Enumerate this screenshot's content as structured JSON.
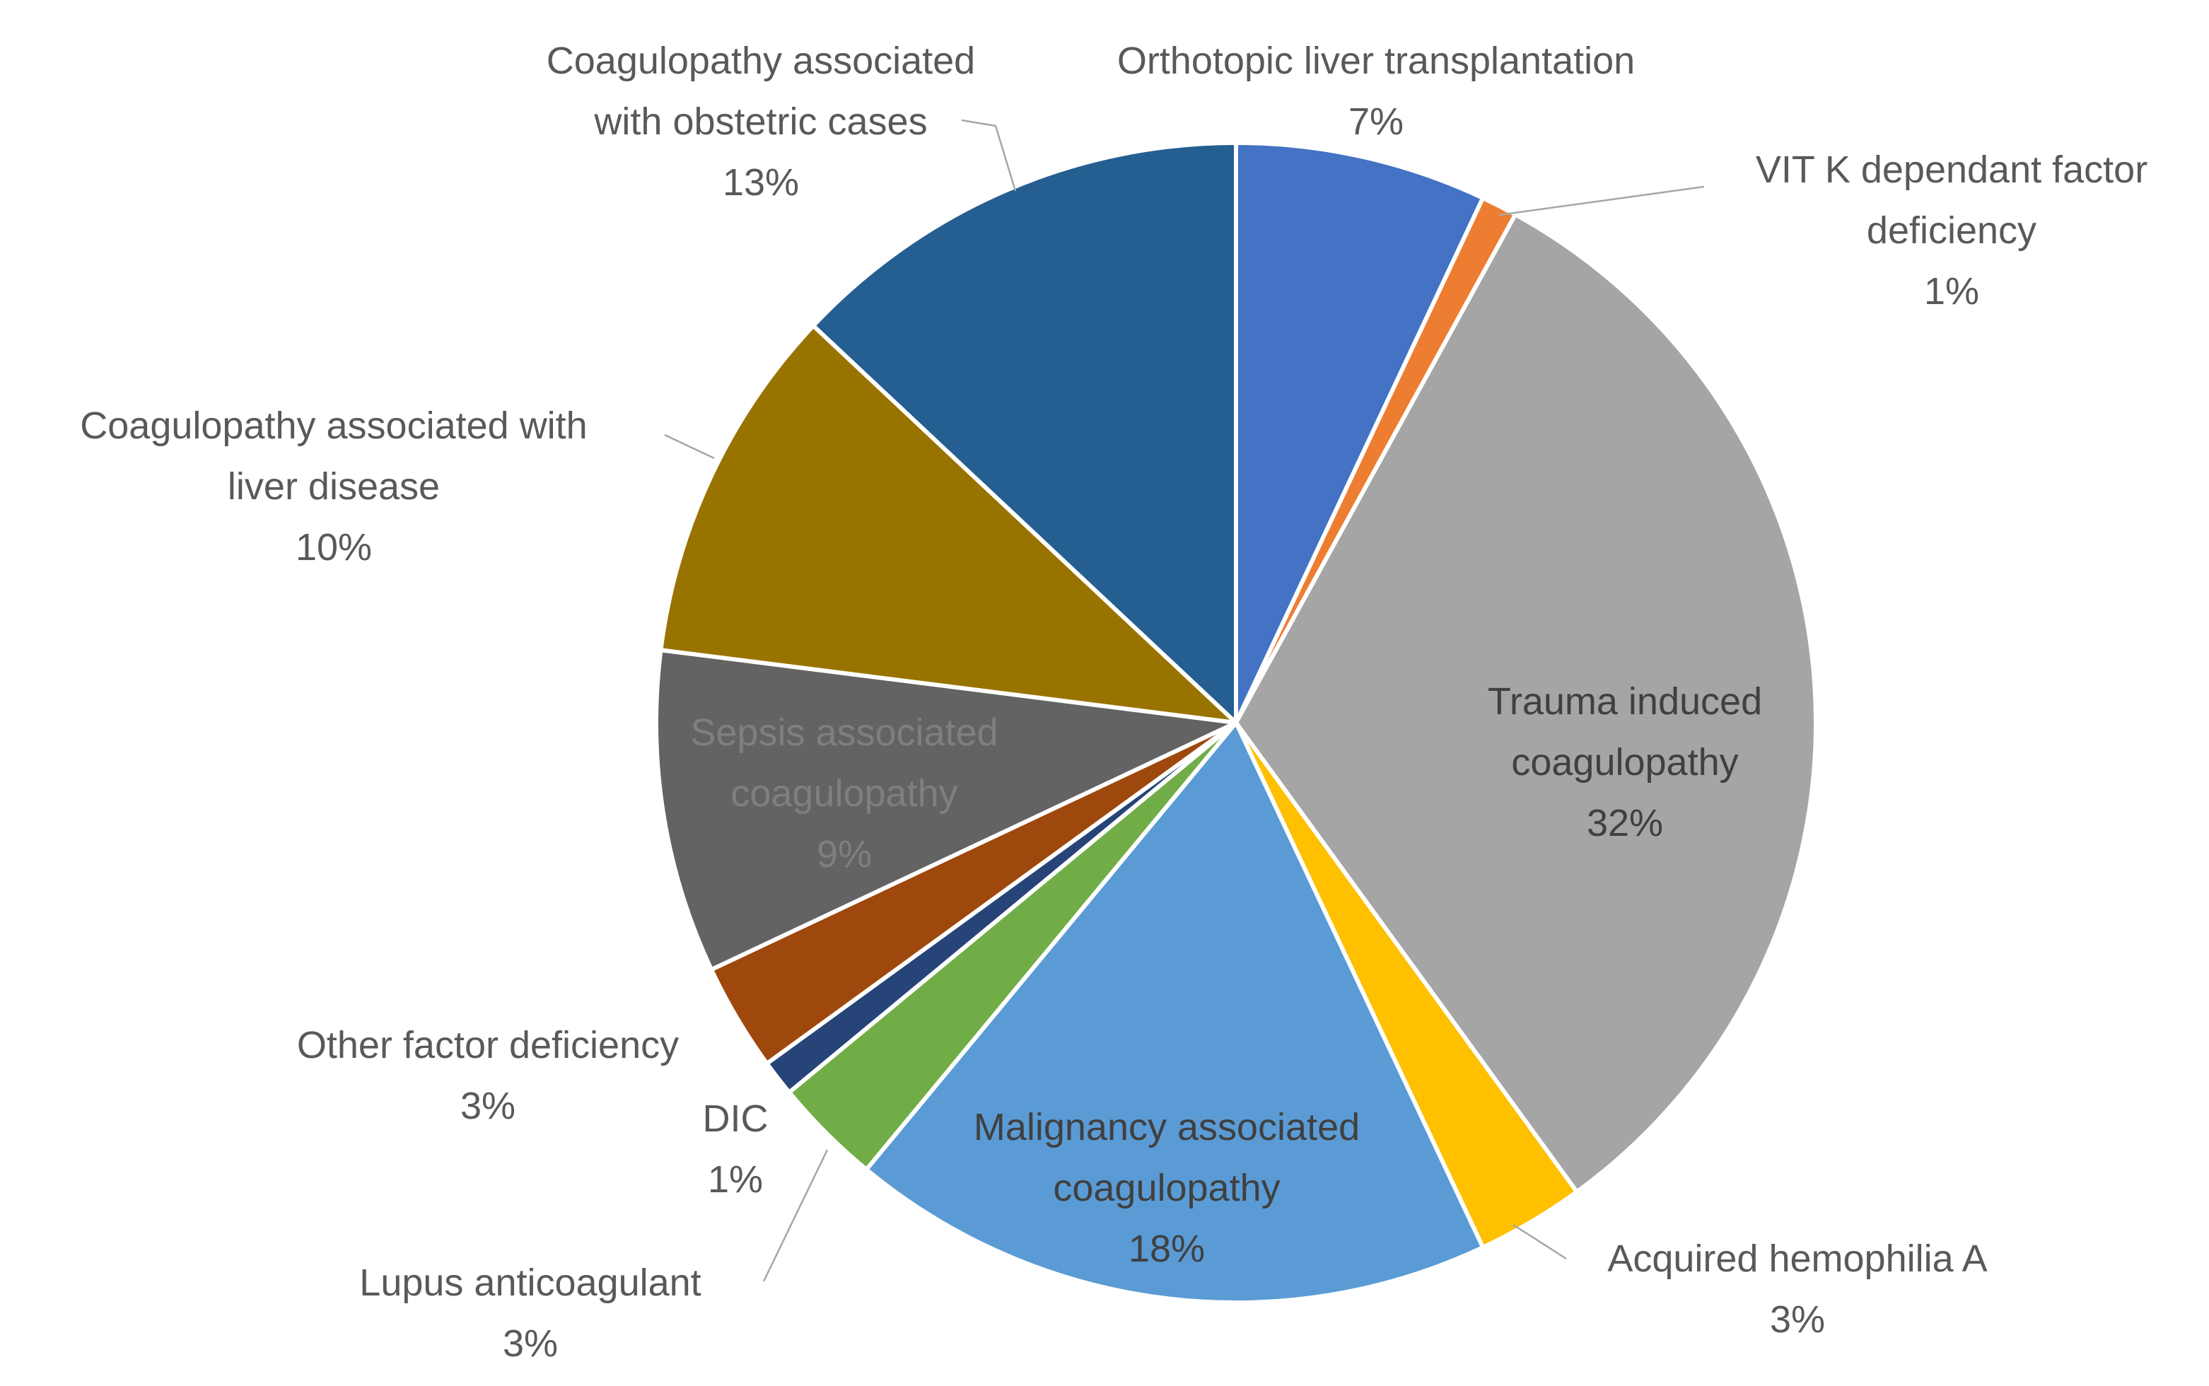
{
  "chart_data": {
    "type": "pie",
    "title": "",
    "start": "12 o'clock, clockwise",
    "slices": [
      {
        "label": [
          "Orthotopic liver transplantation"
        ],
        "value": 7,
        "pct_label": "7%",
        "color": "#4472c4",
        "label_color": "#595959"
      },
      {
        "label": [
          "VIT K dependant  factor",
          "deficiency"
        ],
        "value": 1,
        "pct_label": "1%",
        "color": "#ed7d31",
        "label_color": "#595959"
      },
      {
        "label": [
          "Trauma induced",
          "coagulopathy"
        ],
        "value": 32,
        "pct_label": "32%",
        "color": "#a5a5a5",
        "label_color": "#404040"
      },
      {
        "label": [
          "Acquired hemophilia A"
        ],
        "value": 3,
        "pct_label": "3%",
        "color": "#ffc000",
        "label_color": "#595959"
      },
      {
        "label": [
          "Malignancy associated",
          "coagulopathy"
        ],
        "value": 18,
        "pct_label": "18%",
        "color": "#5b9bd5",
        "label_color": "#404040"
      },
      {
        "label": [
          "Lupus anticoagulant"
        ],
        "value": 3,
        "pct_label": "3%",
        "color": "#70ad47",
        "label_color": "#595959"
      },
      {
        "label": [
          "DIC"
        ],
        "value": 1,
        "pct_label": "1%",
        "color": "#264478",
        "label_color": "#595959"
      },
      {
        "label": [
          "Other factor deficiency"
        ],
        "value": 3,
        "pct_label": "3%",
        "color": "#9e480e",
        "label_color": "#595959"
      },
      {
        "label": [
          "Sepsis associated",
          "coagulopathy"
        ],
        "value": 9,
        "pct_label": "9%",
        "color": "#636363",
        "label_color": "#7f7f7f"
      },
      {
        "label": [
          "Coagulopathy associated with",
          "liver disease"
        ],
        "value": 10,
        "pct_label": "10%",
        "color": "#997300",
        "label_color": "#595959"
      },
      {
        "label": [
          "Coagulopathy associated",
          "with obstetric cases"
        ],
        "value": 13,
        "pct_label": "13%",
        "color": "#255e91",
        "label_color": "#595959"
      }
    ]
  }
}
